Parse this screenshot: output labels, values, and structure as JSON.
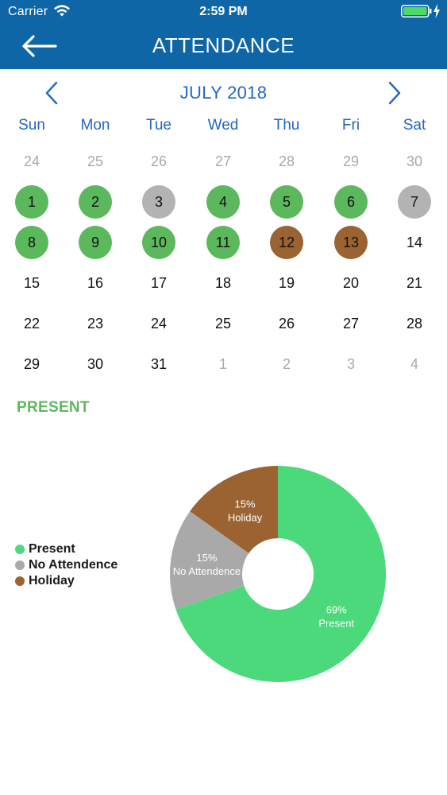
{
  "status_bar": {
    "carrier": "Carrier",
    "time": "2:59 PM"
  },
  "navbar": {
    "title": "ATTENDANCE",
    "back_icon": "back-arrow-icon"
  },
  "calendar": {
    "month": "JULY 2018",
    "prev_icon": "chevron-left-icon",
    "next_icon": "chevron-right-icon",
    "weekdays": [
      "Sun",
      "Mon",
      "Tue",
      "Wed",
      "Thu",
      "Fri",
      "Sat"
    ],
    "weeks": [
      [
        {
          "day": "24",
          "status": "muted"
        },
        {
          "day": "25",
          "status": "muted"
        },
        {
          "day": "26",
          "status": "muted"
        },
        {
          "day": "27",
          "status": "muted"
        },
        {
          "day": "28",
          "status": "muted"
        },
        {
          "day": "29",
          "status": "muted"
        },
        {
          "day": "30",
          "status": "muted"
        }
      ],
      [
        {
          "day": "1",
          "status": "present"
        },
        {
          "day": "2",
          "status": "present"
        },
        {
          "day": "3",
          "status": "absent"
        },
        {
          "day": "4",
          "status": "present"
        },
        {
          "day": "5",
          "status": "present"
        },
        {
          "day": "6",
          "status": "present"
        },
        {
          "day": "7",
          "status": "absent"
        }
      ],
      [
        {
          "day": "8",
          "status": "present"
        },
        {
          "day": "9",
          "status": "present"
        },
        {
          "day": "10",
          "status": "present"
        },
        {
          "day": "11",
          "status": "present"
        },
        {
          "day": "12",
          "status": "holiday"
        },
        {
          "day": "13",
          "status": "holiday"
        },
        {
          "day": "14",
          "status": "normal"
        }
      ],
      [
        {
          "day": "15",
          "status": "normal"
        },
        {
          "day": "16",
          "status": "normal"
        },
        {
          "day": "17",
          "status": "normal"
        },
        {
          "day": "18",
          "status": "normal"
        },
        {
          "day": "19",
          "status": "normal"
        },
        {
          "day": "20",
          "status": "normal"
        },
        {
          "day": "21",
          "status": "normal"
        }
      ],
      [
        {
          "day": "22",
          "status": "normal"
        },
        {
          "day": "23",
          "status": "normal"
        },
        {
          "day": "24",
          "status": "normal"
        },
        {
          "day": "25",
          "status": "normal"
        },
        {
          "day": "26",
          "status": "normal"
        },
        {
          "day": "27",
          "status": "normal"
        },
        {
          "day": "28",
          "status": "normal"
        }
      ],
      [
        {
          "day": "29",
          "status": "normal"
        },
        {
          "day": "30",
          "status": "normal"
        },
        {
          "day": "31",
          "status": "normal"
        },
        {
          "day": "1",
          "status": "muted"
        },
        {
          "day": "2",
          "status": "muted"
        },
        {
          "day": "3",
          "status": "muted"
        },
        {
          "day": "4",
          "status": "muted"
        }
      ]
    ]
  },
  "summary": {
    "label": "PRESENT"
  },
  "legend": [
    {
      "label": "Present",
      "color": "#4cd97b"
    },
    {
      "label": "No Attendence",
      "color": "#a9a9a9"
    },
    {
      "label": "Holiday",
      "color": "#9a6331"
    }
  ],
  "chart_data": {
    "type": "pie",
    "donut": true,
    "slices": [
      {
        "name": "Present",
        "value": 69,
        "label": "69%",
        "color": "#4cd97b"
      },
      {
        "name": "No Attendence",
        "value": 15,
        "label": "15%",
        "color": "#a9a9a9"
      },
      {
        "name": "Holiday",
        "value": 15,
        "label": "15%",
        "color": "#9a6331"
      }
    ],
    "start": "top",
    "direction": "clockwise",
    "legend_position": "left"
  },
  "colors": {
    "header_background": "#0e66a6",
    "accent_blue": "#2167c6",
    "present_green": "#5cb85c",
    "absent_gray": "#b3b3b3",
    "holiday_brown": "#9a6331"
  }
}
